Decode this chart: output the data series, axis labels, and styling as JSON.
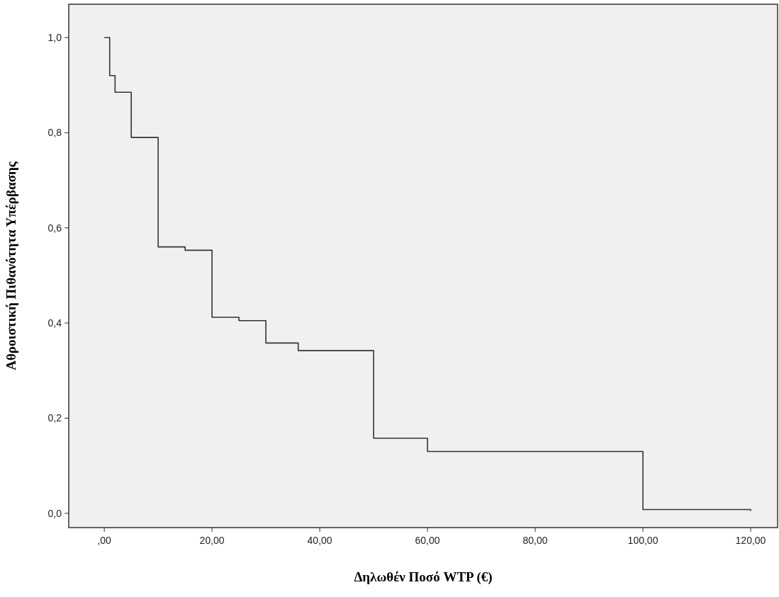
{
  "chart_data": {
    "type": "step",
    "xlabel": "Δηλωθέν Ποσό WTP (€)",
    "ylabel": "Αθροιστική Πιθανότητα Υπέρβασης",
    "x": [
      0,
      1,
      2,
      5,
      10,
      15,
      20,
      25,
      30,
      36,
      50,
      60,
      100,
      120
    ],
    "series": [
      {
        "color": "#333333",
        "values": [
          1,
          0.92,
          0.885,
          0.79,
          0.56,
          0.553,
          0.412,
          0.405,
          0.358,
          0.342,
          0.158,
          0.13,
          0.008,
          0.005
        ]
      }
    ],
    "xlim": [
      -6.6,
      125
    ],
    "ylim": [
      -0.03,
      1.07
    ],
    "xticks": [
      {
        "value": 0,
        "label": ",00"
      },
      {
        "value": 20,
        "label": "20,00"
      },
      {
        "value": 40,
        "label": "40,00"
      },
      {
        "value": 60,
        "label": "60,00"
      },
      {
        "value": 80,
        "label": "80,00"
      },
      {
        "value": 100,
        "label": "100,00"
      },
      {
        "value": 120,
        "label": "120,00"
      }
    ],
    "yticks": [
      {
        "value": 0,
        "label": "0,0"
      },
      {
        "value": 0.2,
        "label": "0,2"
      },
      {
        "value": 0.4,
        "label": "0,4"
      },
      {
        "value": 0.6,
        "label": "0,6"
      },
      {
        "value": 0.8,
        "label": "0,8"
      },
      {
        "value": 1,
        "label": "1,0"
      }
    ],
    "grid": false,
    "marker": "none",
    "line_style": "solid"
  }
}
